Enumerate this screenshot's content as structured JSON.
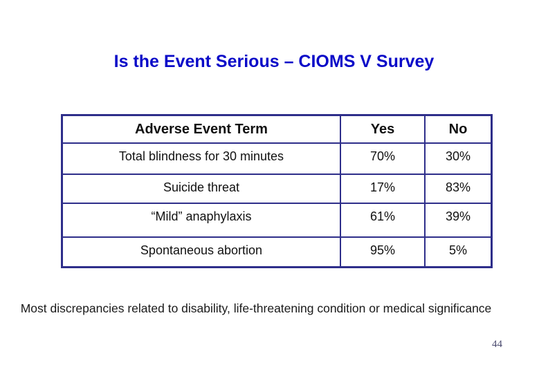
{
  "slide": {
    "title": "Is the Event Serious – CIOMS V Survey",
    "table": {
      "headers": [
        "Adverse Event Term",
        "Yes",
        "No"
      ],
      "rows": [
        {
          "term": "Total blindness for 30 minutes",
          "yes": "70%",
          "no": "30%"
        },
        {
          "term": "Suicide threat",
          "yes": "17%",
          "no": "83%"
        },
        {
          "term": "“Mild” anaphylaxis",
          "yes": "61%",
          "no": "39%"
        },
        {
          "term": "Spontaneous abortion",
          "yes": "95%",
          "no": "5%"
        }
      ]
    },
    "footer_note": "Most discrepancies related to disability, life-threatening condition or medical significance",
    "page_number": "44",
    "colors": {
      "title_text": "#0a0ac8",
      "table_border": "#2e2e8a",
      "body_text": "#111111",
      "page_number_text": "#4a4a6e",
      "background": "#ffffff"
    }
  },
  "chart_data": {
    "type": "table",
    "title": "Is the Event Serious – CIOMS V Survey",
    "columns": [
      "Adverse Event Term",
      "Yes",
      "No"
    ],
    "rows": [
      [
        "Total blindness for 30 minutes",
        "70%",
        "30%"
      ],
      [
        "Suicide threat",
        "17%",
        "83%"
      ],
      [
        "“Mild” anaphylaxis",
        "61%",
        "39%"
      ],
      [
        "Spontaneous abortion",
        "95%",
        "5%"
      ]
    ]
  }
}
